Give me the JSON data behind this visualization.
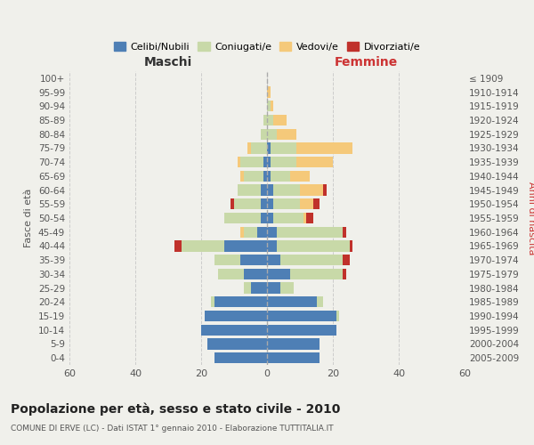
{
  "age_groups": [
    "0-4",
    "5-9",
    "10-14",
    "15-19",
    "20-24",
    "25-29",
    "30-34",
    "35-39",
    "40-44",
    "45-49",
    "50-54",
    "55-59",
    "60-64",
    "65-69",
    "70-74",
    "75-79",
    "80-84",
    "85-89",
    "90-94",
    "95-99",
    "100+"
  ],
  "birth_years": [
    "2005-2009",
    "2000-2004",
    "1995-1999",
    "1990-1994",
    "1985-1989",
    "1980-1984",
    "1975-1979",
    "1970-1974",
    "1965-1969",
    "1960-1964",
    "1955-1959",
    "1950-1954",
    "1945-1949",
    "1940-1944",
    "1935-1939",
    "1930-1934",
    "1925-1929",
    "1920-1924",
    "1915-1919",
    "1910-1914",
    "≤ 1909"
  ],
  "males": {
    "celibi": [
      16,
      18,
      20,
      19,
      16,
      5,
      7,
      8,
      13,
      3,
      2,
      2,
      2,
      1,
      1,
      0,
      0,
      0,
      0,
      0,
      0
    ],
    "coniugati": [
      0,
      0,
      0,
      0,
      1,
      2,
      8,
      8,
      13,
      4,
      11,
      8,
      7,
      6,
      7,
      5,
      2,
      1,
      0,
      0,
      0
    ],
    "vedovi": [
      0,
      0,
      0,
      0,
      0,
      0,
      0,
      0,
      0,
      1,
      0,
      0,
      0,
      1,
      1,
      1,
      0,
      0,
      0,
      0,
      0
    ],
    "divorziati": [
      0,
      0,
      0,
      0,
      0,
      0,
      0,
      0,
      2,
      0,
      0,
      1,
      0,
      0,
      0,
      0,
      0,
      0,
      0,
      0,
      0
    ]
  },
  "females": {
    "nubili": [
      16,
      16,
      21,
      21,
      15,
      4,
      7,
      4,
      3,
      3,
      2,
      2,
      2,
      1,
      1,
      1,
      0,
      0,
      0,
      0,
      0
    ],
    "coniugate": [
      0,
      0,
      0,
      1,
      2,
      4,
      16,
      19,
      22,
      20,
      9,
      8,
      8,
      6,
      8,
      8,
      3,
      2,
      1,
      0,
      0
    ],
    "vedove": [
      0,
      0,
      0,
      0,
      0,
      0,
      0,
      0,
      0,
      0,
      1,
      4,
      7,
      6,
      11,
      17,
      6,
      4,
      1,
      1,
      0
    ],
    "divorziate": [
      0,
      0,
      0,
      0,
      0,
      0,
      1,
      2,
      1,
      1,
      2,
      2,
      1,
      0,
      0,
      0,
      0,
      0,
      0,
      0,
      0
    ]
  },
  "colors": {
    "celibi_nubili": "#4e7fb5",
    "coniugati_e": "#c8d9a8",
    "vedovi_e": "#f5c97a",
    "divorziati_e": "#c0312b"
  },
  "title": "Popolazione per età, sesso e stato civile - 2010",
  "subtitle": "COMUNE DI ERVE (LC) - Dati ISTAT 1° gennaio 2010 - Elaborazione TUTTITALIA.IT",
  "xlabel_left": "Maschi",
  "xlabel_right": "Femmine",
  "ylabel_left": "Fasce di età",
  "ylabel_right": "Anni di nascita",
  "legend_labels": [
    "Celibi/Nubili",
    "Coniugati/e",
    "Vedovi/e",
    "Divorziati/e"
  ],
  "xlim": 60,
  "background_color": "#f0f0eb"
}
